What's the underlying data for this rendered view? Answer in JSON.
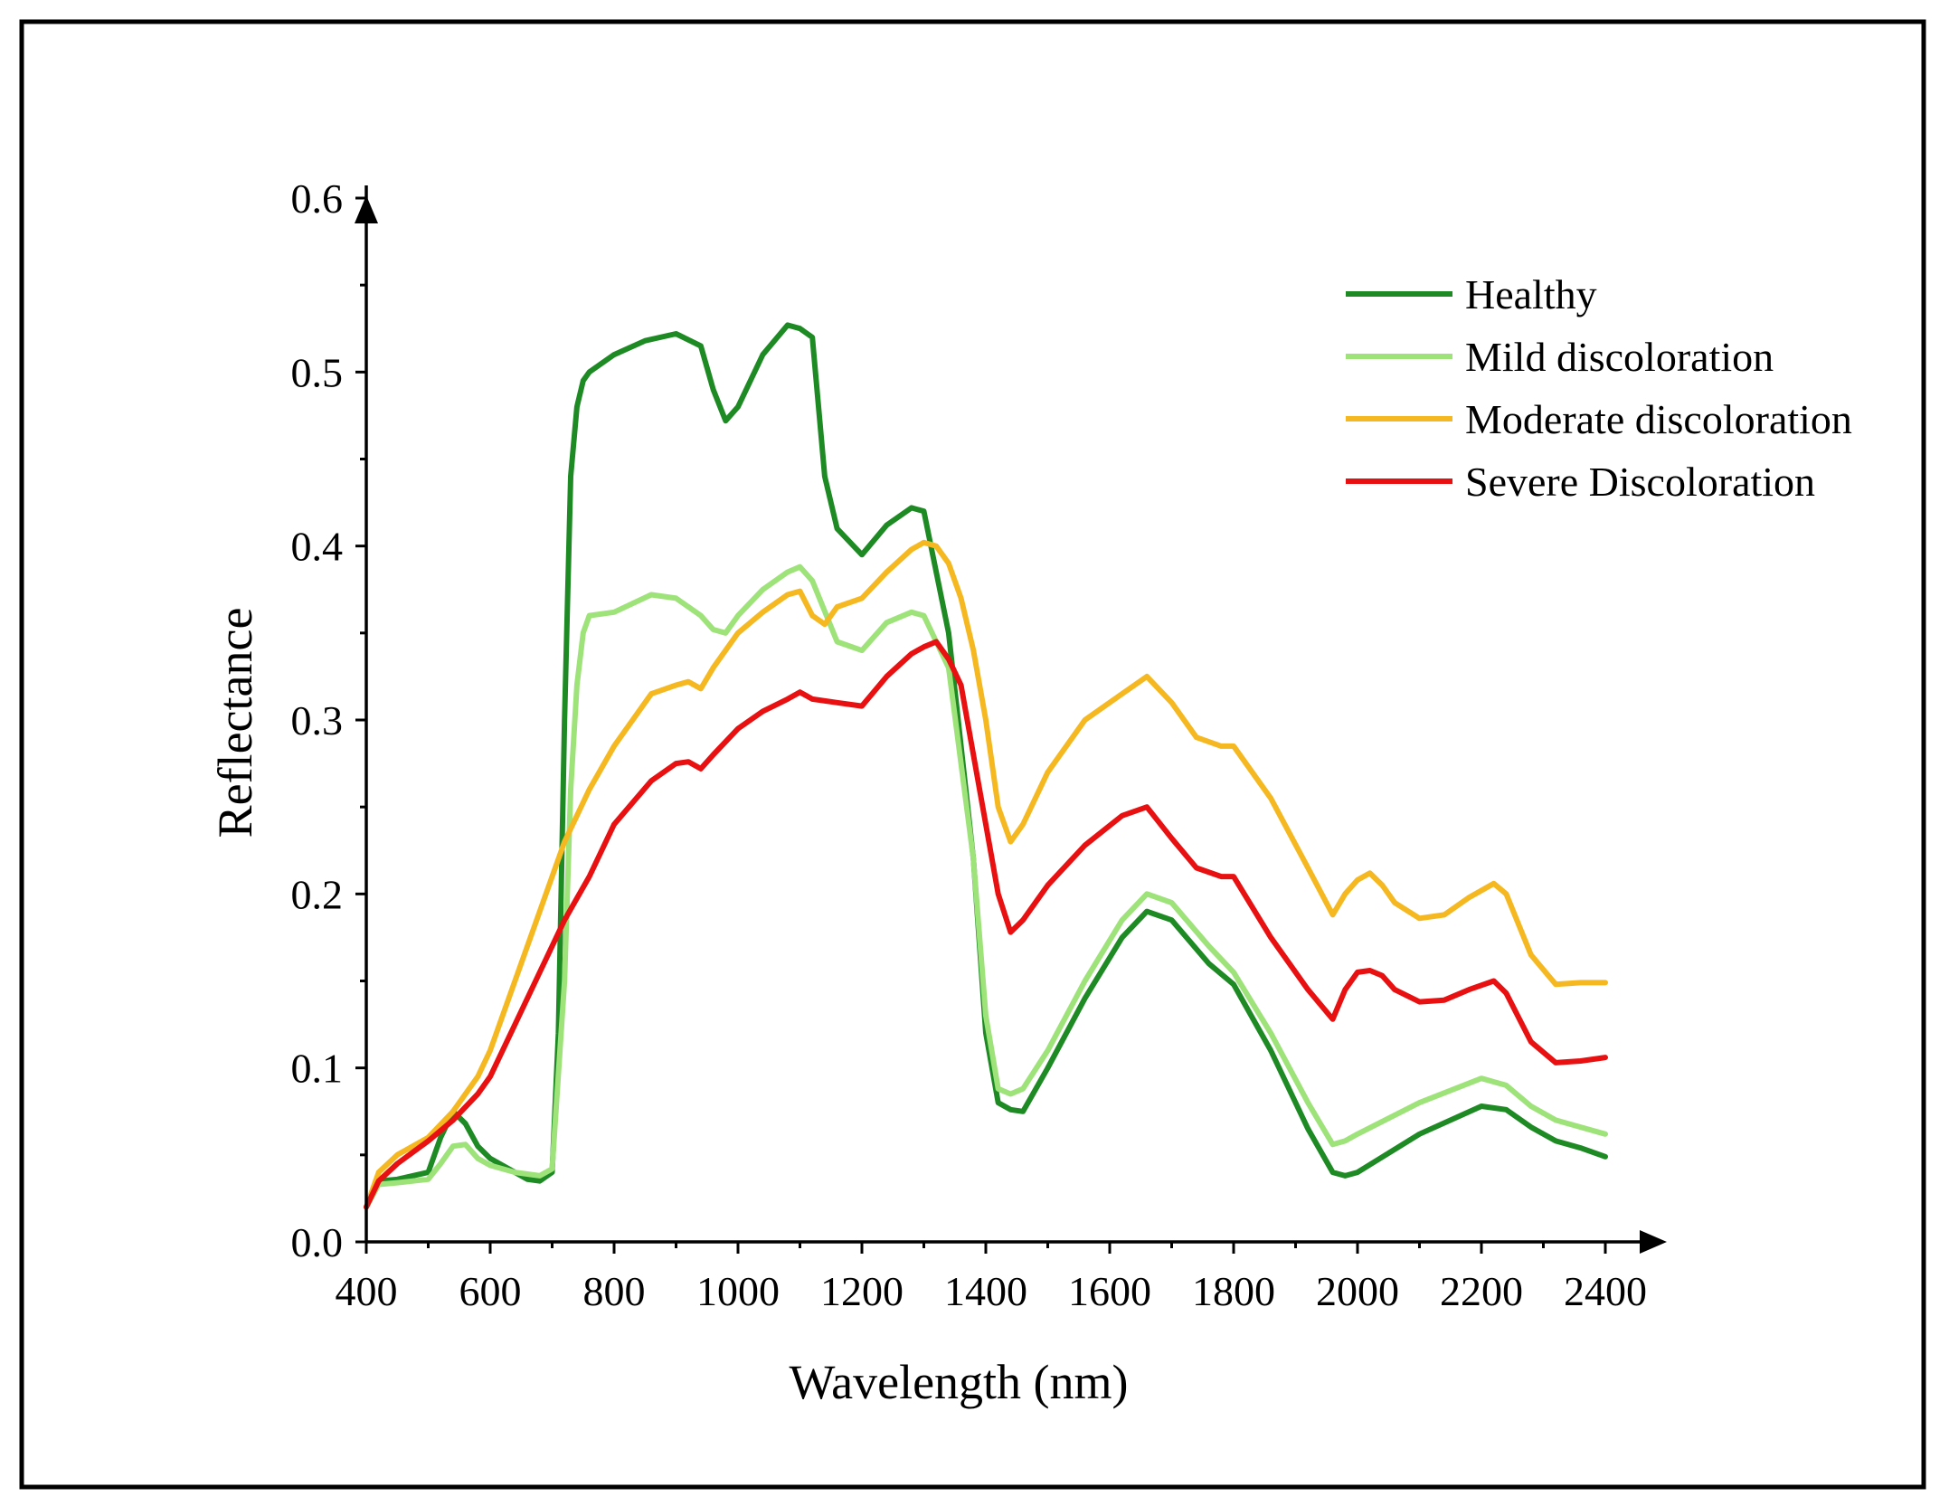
{
  "chart_data": {
    "type": "line",
    "xlabel": "Wavelength (nm)",
    "ylabel": "Reflectance",
    "xlim": [
      400,
      2400
    ],
    "ylim": [
      0.0,
      0.6
    ],
    "xticks": [
      "400",
      "600",
      "800",
      "1000",
      "1200",
      "1400",
      "1600",
      "1800",
      "2000",
      "2200",
      "2400"
    ],
    "yticks": [
      "0.0",
      "0.1",
      "0.2",
      "0.3",
      "0.4",
      "0.5",
      "0.6"
    ],
    "grid": false,
    "legend_position": "top-right",
    "series": [
      {
        "name": "Healthy",
        "color": "#1e8a24",
        "x": [
          400,
          420,
          450,
          500,
          520,
          540,
          560,
          580,
          600,
          640,
          660,
          680,
          700,
          710,
          720,
          730,
          740,
          750,
          760,
          800,
          850,
          900,
          940,
          960,
          980,
          1000,
          1040,
          1080,
          1100,
          1120,
          1140,
          1160,
          1200,
          1240,
          1280,
          1300,
          1340,
          1380,
          1400,
          1420,
          1440,
          1460,
          1500,
          1560,
          1620,
          1660,
          1700,
          1760,
          1800,
          1860,
          1920,
          1960,
          1980,
          2000,
          2100,
          2200,
          2240,
          2280,
          2320,
          2360,
          2400
        ],
        "y": [
          0.02,
          0.035,
          0.036,
          0.04,
          0.06,
          0.075,
          0.068,
          0.055,
          0.048,
          0.04,
          0.036,
          0.035,
          0.04,
          0.12,
          0.3,
          0.44,
          0.48,
          0.495,
          0.5,
          0.51,
          0.518,
          0.522,
          0.515,
          0.49,
          0.472,
          0.48,
          0.51,
          0.527,
          0.525,
          0.52,
          0.44,
          0.41,
          0.395,
          0.412,
          0.422,
          0.42,
          0.35,
          0.22,
          0.12,
          0.08,
          0.076,
          0.075,
          0.1,
          0.14,
          0.175,
          0.19,
          0.185,
          0.16,
          0.148,
          0.11,
          0.065,
          0.04,
          0.038,
          0.04,
          0.062,
          0.078,
          0.076,
          0.066,
          0.058,
          0.054,
          0.049
        ]
      },
      {
        "name": "Mild discoloration",
        "color": "#9ee27a",
        "x": [
          400,
          420,
          450,
          500,
          520,
          540,
          560,
          580,
          600,
          640,
          680,
          700,
          720,
          730,
          740,
          750,
          760,
          800,
          860,
          900,
          940,
          960,
          980,
          1000,
          1040,
          1080,
          1100,
          1120,
          1160,
          1200,
          1240,
          1280,
          1300,
          1340,
          1380,
          1400,
          1420,
          1440,
          1460,
          1500,
          1560,
          1620,
          1660,
          1700,
          1760,
          1800,
          1860,
          1920,
          1960,
          1980,
          2000,
          2100,
          2200,
          2240,
          2280,
          2320,
          2360,
          2400
        ],
        "y": [
          0.02,
          0.033,
          0.034,
          0.036,
          0.045,
          0.055,
          0.056,
          0.048,
          0.044,
          0.04,
          0.038,
          0.042,
          0.15,
          0.26,
          0.32,
          0.35,
          0.36,
          0.362,
          0.372,
          0.37,
          0.36,
          0.352,
          0.35,
          0.36,
          0.375,
          0.385,
          0.388,
          0.38,
          0.345,
          0.34,
          0.356,
          0.362,
          0.36,
          0.33,
          0.22,
          0.13,
          0.088,
          0.085,
          0.088,
          0.11,
          0.15,
          0.185,
          0.2,
          0.195,
          0.17,
          0.155,
          0.12,
          0.08,
          0.056,
          0.058,
          0.062,
          0.08,
          0.094,
          0.09,
          0.078,
          0.07,
          0.066,
          0.062
        ]
      },
      {
        "name": "Moderate discoloration",
        "color": "#f5b821",
        "x": [
          400,
          420,
          450,
          500,
          540,
          580,
          600,
          640,
          680,
          720,
          760,
          800,
          860,
          900,
          920,
          940,
          960,
          1000,
          1040,
          1080,
          1100,
          1120,
          1140,
          1160,
          1200,
          1240,
          1280,
          1300,
          1320,
          1340,
          1360,
          1380,
          1400,
          1420,
          1440,
          1460,
          1500,
          1560,
          1620,
          1660,
          1700,
          1740,
          1780,
          1800,
          1860,
          1920,
          1960,
          1980,
          2000,
          2020,
          2040,
          2060,
          2100,
          2140,
          2180,
          2220,
          2240,
          2280,
          2320,
          2360,
          2400
        ],
        "y": [
          0.02,
          0.04,
          0.05,
          0.06,
          0.075,
          0.095,
          0.11,
          0.15,
          0.19,
          0.23,
          0.26,
          0.285,
          0.315,
          0.32,
          0.322,
          0.318,
          0.33,
          0.35,
          0.362,
          0.372,
          0.374,
          0.36,
          0.355,
          0.365,
          0.37,
          0.385,
          0.398,
          0.402,
          0.4,
          0.39,
          0.37,
          0.34,
          0.3,
          0.25,
          0.23,
          0.24,
          0.27,
          0.3,
          0.315,
          0.325,
          0.31,
          0.29,
          0.285,
          0.285,
          0.255,
          0.215,
          0.188,
          0.2,
          0.208,
          0.212,
          0.205,
          0.195,
          0.186,
          0.188,
          0.198,
          0.206,
          0.2,
          0.165,
          0.148,
          0.149,
          0.149
        ]
      },
      {
        "name": "Severe Discoloration",
        "color": "#e81010",
        "x": [
          400,
          420,
          450,
          500,
          540,
          580,
          600,
          640,
          680,
          720,
          760,
          800,
          860,
          900,
          920,
          940,
          960,
          1000,
          1040,
          1080,
          1100,
          1120,
          1160,
          1200,
          1240,
          1280,
          1300,
          1320,
          1340,
          1360,
          1380,
          1400,
          1420,
          1440,
          1460,
          1500,
          1560,
          1620,
          1660,
          1700,
          1740,
          1780,
          1800,
          1860,
          1920,
          1960,
          1980,
          2000,
          2020,
          2040,
          2060,
          2100,
          2140,
          2180,
          2220,
          2240,
          2280,
          2320,
          2360,
          2400
        ],
        "y": [
          0.02,
          0.035,
          0.045,
          0.058,
          0.07,
          0.085,
          0.095,
          0.125,
          0.155,
          0.185,
          0.21,
          0.24,
          0.265,
          0.275,
          0.276,
          0.272,
          0.28,
          0.295,
          0.305,
          0.312,
          0.316,
          0.312,
          0.31,
          0.308,
          0.325,
          0.338,
          0.342,
          0.345,
          0.335,
          0.32,
          0.28,
          0.24,
          0.2,
          0.178,
          0.185,
          0.205,
          0.228,
          0.245,
          0.25,
          0.232,
          0.215,
          0.21,
          0.21,
          0.175,
          0.145,
          0.128,
          0.145,
          0.155,
          0.156,
          0.153,
          0.145,
          0.138,
          0.139,
          0.145,
          0.15,
          0.143,
          0.115,
          0.103,
          0.104,
          0.106
        ]
      }
    ]
  }
}
